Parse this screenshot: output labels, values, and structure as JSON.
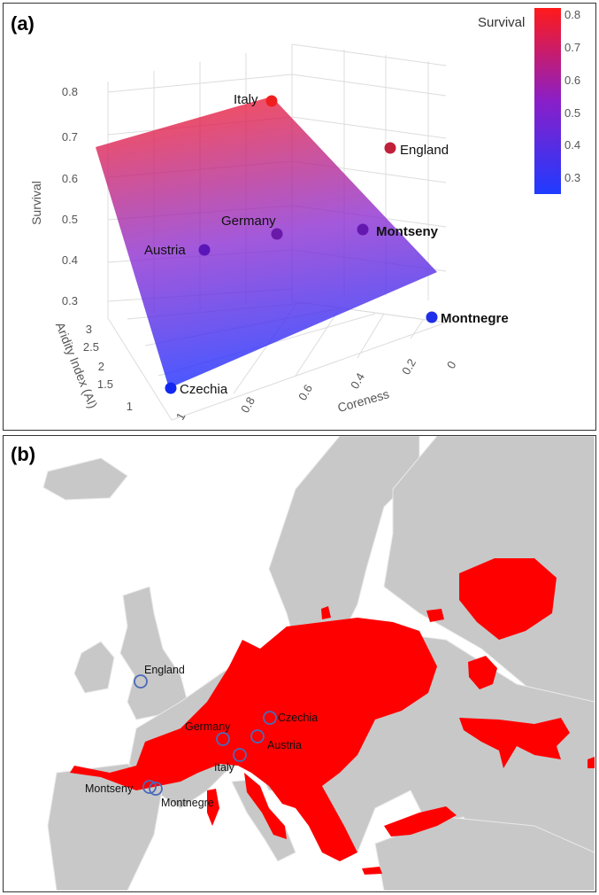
{
  "panel_a": {
    "letter": "(a)"
  },
  "panel_b": {
    "letter": "(b)"
  },
  "chart_data": [
    {
      "type": "scatter",
      "title": "",
      "xlabel": "Coreness",
      "ylabel": "Survival",
      "zlabel": "Aridity Index (AI)",
      "x_ticks": [
        "0",
        "0.2",
        "0.4",
        "0.6",
        "0.8",
        "1"
      ],
      "y_ticks": [
        "0.3",
        "0.4",
        "0.5",
        "0.6",
        "0.7",
        "0.8"
      ],
      "z_ticks": [
        "1",
        "1.5",
        "2",
        "2.5",
        "3"
      ],
      "colorbar": {
        "title": "Survival",
        "ticks": [
          "0.3",
          "0.4",
          "0.5",
          "0.6",
          "0.7",
          "0.8"
        ],
        "range": [
          0.25,
          0.82
        ],
        "colors": [
          "#1f3bff",
          "#ff1a1a"
        ]
      },
      "surface": "fitted plane",
      "points": [
        {
          "label": "Italy",
          "survival": 0.79,
          "bold": false,
          "color": "#f01f1f"
        },
        {
          "label": "England",
          "survival": 0.66,
          "bold": false,
          "color": "#c0203a"
        },
        {
          "label": "Germany",
          "survival": 0.45,
          "bold": false,
          "color": "#6a1aa8"
        },
        {
          "label": "Montseny",
          "survival": 0.46,
          "bold": true,
          "color": "#6518b0"
        },
        {
          "label": "Austria",
          "survival": 0.41,
          "bold": false,
          "color": "#5a16b8"
        },
        {
          "label": "Montnegre",
          "survival": 0.3,
          "bold": true,
          "color": "#1f2ee8"
        },
        {
          "label": "Czechia",
          "survival": 0.26,
          "bold": false,
          "color": "#1228f0"
        }
      ]
    },
    {
      "type": "map",
      "region": "Europe",
      "range_color": "#ff0000",
      "land_color": "#c8c8c8",
      "sites": [
        {
          "label": "England"
        },
        {
          "label": "Germany"
        },
        {
          "label": "Czechia"
        },
        {
          "label": "Austria"
        },
        {
          "label": "Italy"
        },
        {
          "label": "Montseny"
        },
        {
          "label": "Montnegre"
        }
      ]
    }
  ]
}
